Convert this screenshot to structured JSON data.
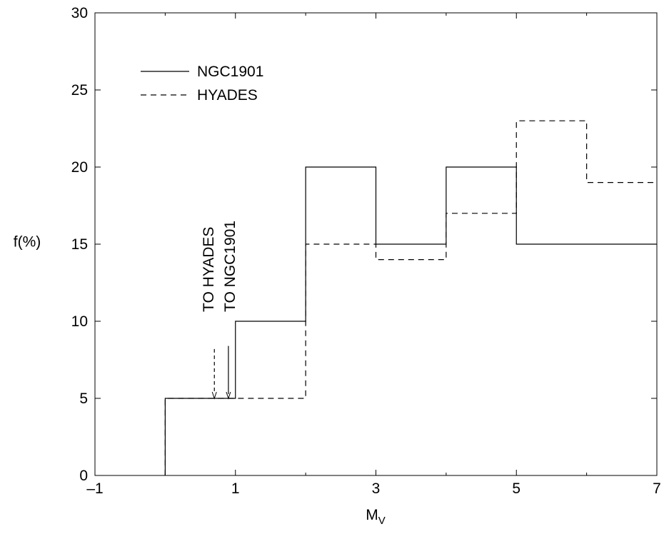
{
  "chart_data": {
    "type": "line",
    "style": "step-histogram",
    "xlabel": "M",
    "xlabel_subscript": "V",
    "ylabel": "f(%)",
    "xlim": [
      -1,
      7
    ],
    "ylim": [
      0,
      30
    ],
    "x_ticks": [
      -1,
      1,
      3,
      5,
      7
    ],
    "x_tick_labels": [
      "–1",
      "1",
      "3",
      "5",
      "7"
    ],
    "y_ticks": [
      0,
      5,
      10,
      15,
      20,
      25,
      30
    ],
    "y_tick_labels": [
      "0",
      "5",
      "10",
      "15",
      "20",
      "25",
      "30"
    ],
    "legend_position": "top-left",
    "series": [
      {
        "name": "NGC1901",
        "line_style": "solid",
        "bins": [
          {
            "x0": 0,
            "x1": 1,
            "y": 5
          },
          {
            "x0": 1,
            "x1": 2,
            "y": 10
          },
          {
            "x0": 2,
            "x1": 3,
            "y": 20
          },
          {
            "x0": 3,
            "x1": 4,
            "y": 15
          },
          {
            "x0": 4,
            "x1": 5,
            "y": 20
          },
          {
            "x0": 5,
            "x1": 6,
            "y": 15
          },
          {
            "x0": 6,
            "x1": 7,
            "y": 15
          }
        ]
      },
      {
        "name": "HYADES",
        "line_style": "dashed",
        "bins": [
          {
            "x0": 0,
            "x1": 1,
            "y": 5
          },
          {
            "x0": 1,
            "x1": 2,
            "y": 5
          },
          {
            "x0": 2,
            "x1": 3,
            "y": 15
          },
          {
            "x0": 3,
            "x1": 4,
            "y": 14
          },
          {
            "x0": 4,
            "x1": 5,
            "y": 17
          },
          {
            "x0": 5,
            "x1": 6,
            "y": 23
          },
          {
            "x0": 6,
            "x1": 7,
            "y": 19
          }
        ]
      }
    ],
    "annotations": [
      {
        "text": "TO HYADES",
        "x": 0.7,
        "y_tip": 5,
        "y_tail": 8.2,
        "line_style": "dashed"
      },
      {
        "text": "TO NGC1901",
        "x": 0.9,
        "y_tip": 5,
        "y_tail": 8.4,
        "line_style": "solid"
      }
    ]
  }
}
